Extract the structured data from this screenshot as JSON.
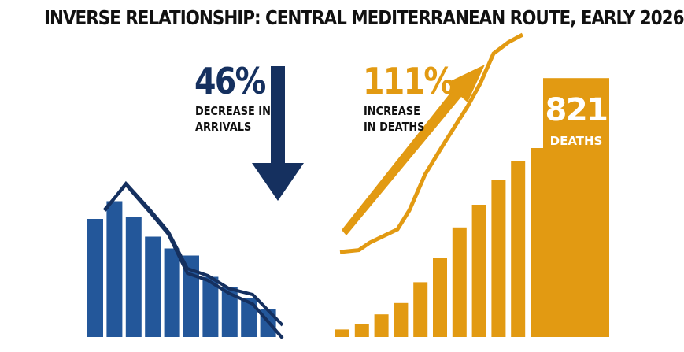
{
  "headline": "INVERSE RELATIONSHIP: CENTRAL MEDITERRANEAN ROUTE, EARLY 2026",
  "colors": {
    "arrivals": "#23579a",
    "arrivals_dark": "#15305f",
    "deaths": "#e29a12",
    "background": "#ffffff"
  },
  "arrivals_stat": {
    "value": "46%",
    "caption_line1": "DECREASE IN",
    "caption_line2": "ARRIVALS"
  },
  "deaths_stat": {
    "value": "111%",
    "caption_line1": "INCREASE",
    "caption_line2": "IN DEATHS"
  },
  "deaths_total": {
    "value": "821",
    "label": "DEATHS"
  },
  "chart_data": [
    {
      "type": "bar",
      "series": [
        {
          "values": [
            100,
            115,
            102,
            85,
            75,
            69,
            51,
            42,
            33,
            24
          ]
        }
      ],
      "trend_lines": [
        [
          107,
          130,
          108,
          89,
          58,
          52,
          41,
          36,
          10
        ],
        [
          108,
          129,
          106,
          87,
          54,
          48,
          37,
          28,
          -1
        ]
      ],
      "trend_direction": "decrease",
      "ylim": [
        0,
        140
      ]
    },
    {
      "type": "bar",
      "series": [
        {
          "values": [
            4,
            7,
            12,
            18,
            29,
            42,
            58,
            70,
            83,
            93,
            100,
            137
          ]
        }
      ],
      "highlight_last_bar": true,
      "trend_line": [
        45,
        46,
        50,
        54,
        57,
        67,
        86,
        103,
        122,
        134,
        150,
        156,
        160
      ],
      "trend_direction": "increase",
      "ylim": [
        0,
        160
      ]
    }
  ]
}
